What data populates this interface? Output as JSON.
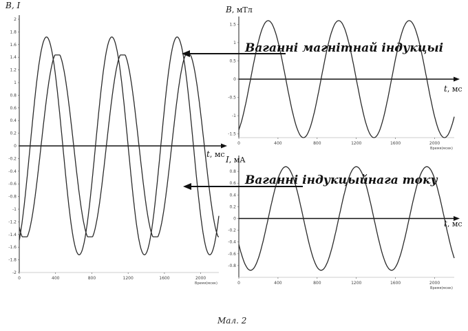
{
  "caption": "Мал. 2",
  "annotations": {
    "magnetic": "Ваганні магнітнай індукцыі",
    "current": "Ваганні індукцыйнага току"
  },
  "chart_data": [
    {
      "type": "line",
      "name": "combined",
      "ylabel": "B, I",
      "xlabel_t": "t",
      "xlabel_unit": ", мс",
      "xtick_name": "Время(мсек)",
      "xlim": [
        0,
        2200
      ],
      "ylim": [
        -2,
        2
      ],
      "xticks": [
        "0",
        "400",
        "800",
        "1200",
        "1600",
        "2000"
      ],
      "yticks": [
        "2",
        "1.8",
        "1.6",
        "1.4",
        "1.2",
        "1",
        "0.8",
        "0.6",
        "0.4",
        "0.2",
        "0",
        "-0.2",
        "-0.4",
        "-0.6",
        "-0.8",
        "-1",
        "-1.2",
        "-1.4",
        "-1.6",
        "-1.8",
        "-2"
      ],
      "series": [
        {
          "amplitude": 1.72,
          "period": 720,
          "phase_peak_x": 300
        },
        {
          "amplitude": 1.48,
          "period": 720,
          "phase_peak_x": 420,
          "flat_tops": true
        }
      ]
    },
    {
      "type": "line",
      "name": "magnetic",
      "ylabel": "B",
      "yunit": ", мТл",
      "xlabel_t": "t",
      "xlabel_unit": ", мс",
      "xtick_name": "Время(мсек)",
      "xlim": [
        0,
        2200
      ],
      "ylim": [
        -1.6,
        1.6
      ],
      "xticks": [
        "0",
        "400",
        "800",
        "1200",
        "1600",
        "2000"
      ],
      "yticks": [
        "1.5",
        "1",
        "0.5",
        "0",
        "-0.5",
        "-1",
        "-1.5"
      ],
      "series": [
        {
          "amplitude": 1.6,
          "period": 720,
          "phase_peak_x": 300
        }
      ]
    },
    {
      "type": "line",
      "name": "current",
      "ylabel": "I",
      "yunit": ", мА",
      "xlabel_t": "t",
      "xlabel_unit": ", мс",
      "xtick_name": "Время(мсек)",
      "xlim": [
        0,
        2200
      ],
      "ylim": [
        -1,
        1
      ],
      "xticks": [
        "0",
        "400",
        "800",
        "1200",
        "1600",
        "2000"
      ],
      "yticks": [
        "0.8",
        "0.6",
        "0.4",
        "0.2",
        "0",
        "-0.2",
        "-0.4",
        "-0.6",
        "-0.8"
      ],
      "series": [
        {
          "amplitude": 0.88,
          "period": 720,
          "phase_peak_x": 480
        }
      ]
    }
  ]
}
